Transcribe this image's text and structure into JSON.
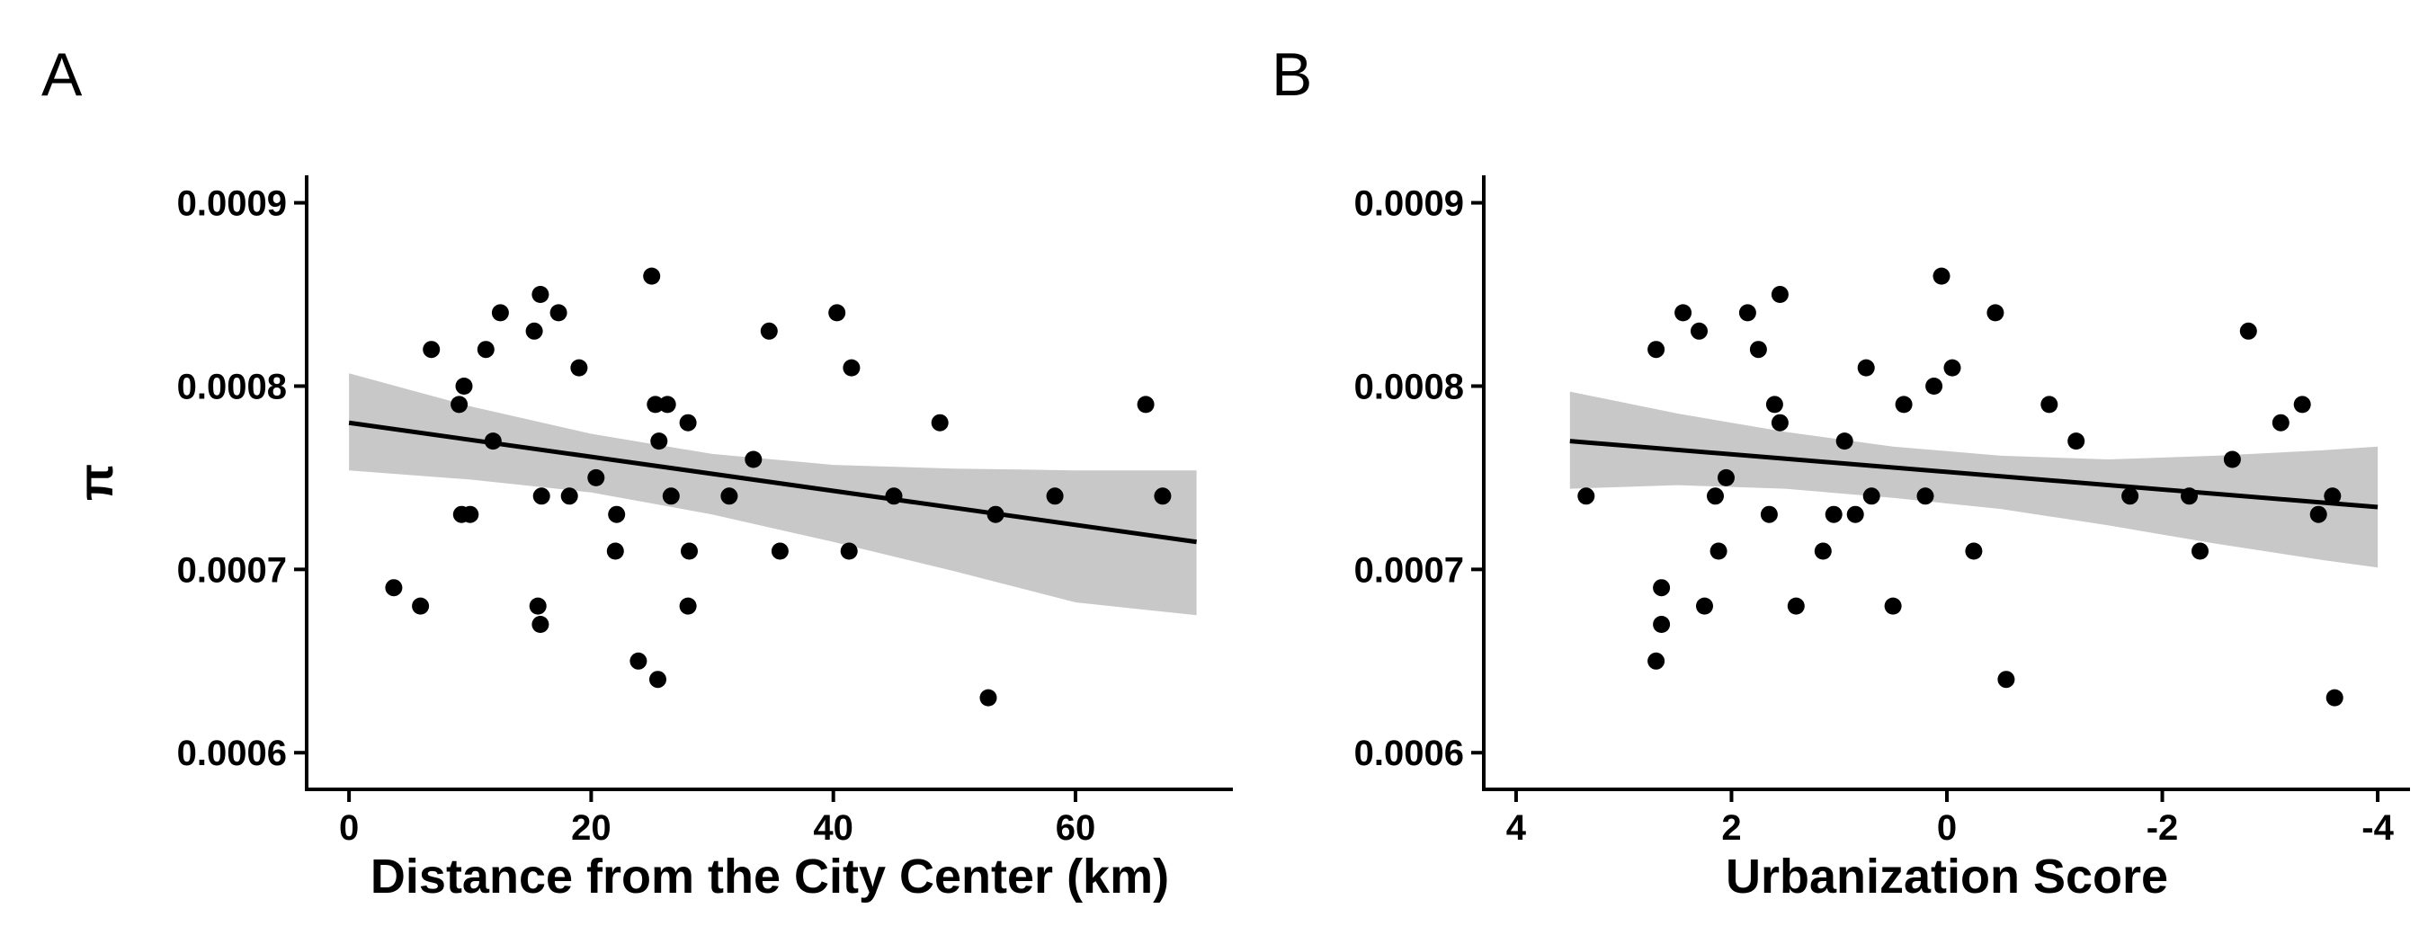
{
  "panels": [
    {
      "letter": "A"
    },
    {
      "letter": "B"
    }
  ],
  "chart_data": [
    {
      "type": "scatter",
      "panel": "A",
      "xlabel": "Distance from the City Center (km)",
      "ylabel": "π",
      "xlim": [
        -3.5,
        73
      ],
      "ylim": [
        0.00058,
        0.000915
      ],
      "xticks": [
        0,
        20,
        40,
        60
      ],
      "xtick_labels": [
        "0",
        "20",
        "40",
        "60"
      ],
      "yticks": [
        0.0006,
        0.0007,
        0.0008,
        0.0009
      ],
      "ytick_labels": [
        "0.0006",
        "0.0007",
        "0.0008",
        "0.0009"
      ],
      "x_reversed": false,
      "grid": false,
      "points": [
        [
          3.7,
          0.00069
        ],
        [
          5.9,
          0.00068
        ],
        [
          6.8,
          0.00082
        ],
        [
          9.1,
          0.00079
        ],
        [
          9.5,
          0.0008
        ],
        [
          9.3,
          0.00073
        ],
        [
          10.0,
          0.00073
        ],
        [
          11.3,
          0.00082
        ],
        [
          11.9,
          0.00077
        ],
        [
          12.5,
          0.00084
        ],
        [
          15.3,
          0.00083
        ],
        [
          15.8,
          0.00085
        ],
        [
          15.9,
          0.00074
        ],
        [
          15.6,
          0.00068
        ],
        [
          15.8,
          0.00067
        ],
        [
          17.3,
          0.00084
        ],
        [
          18.2,
          0.00074
        ],
        [
          19.0,
          0.00081
        ],
        [
          20.4,
          0.00075
        ],
        [
          22.1,
          0.00073
        ],
        [
          22.0,
          0.00071
        ],
        [
          23.9,
          0.00065
        ],
        [
          25.0,
          0.00086
        ],
        [
          25.3,
          0.00079
        ],
        [
          25.6,
          0.00077
        ],
        [
          25.5,
          0.00064
        ],
        [
          26.3,
          0.00079
        ],
        [
          26.6,
          0.00074
        ],
        [
          28.0,
          0.00078
        ],
        [
          28.1,
          0.00071
        ],
        [
          28.0,
          0.00068
        ],
        [
          31.4,
          0.00074
        ],
        [
          33.4,
          0.00076
        ],
        [
          34.7,
          0.00083
        ],
        [
          35.6,
          0.00071
        ],
        [
          40.3,
          0.00084
        ],
        [
          41.3,
          0.00071
        ],
        [
          41.5,
          0.00081
        ],
        [
          45.0,
          0.00074
        ],
        [
          48.8,
          0.00078
        ],
        [
          52.8,
          0.00063
        ],
        [
          53.4,
          0.00073
        ],
        [
          58.3,
          0.00074
        ],
        [
          65.8,
          0.00079
        ],
        [
          67.2,
          0.00074
        ]
      ],
      "fit": {
        "x": [
          0,
          70
        ],
        "y": [
          0.00078,
          0.000715
        ]
      },
      "confidence_band": {
        "x": [
          0,
          10,
          20,
          30,
          40,
          50,
          60,
          70
        ],
        "lower": [
          0.000754,
          0.000749,
          0.000742,
          0.00073,
          0.000715,
          0.000699,
          0.000682,
          0.000675
        ],
        "upper": [
          0.000807,
          0.000789,
          0.000774,
          0.000763,
          0.000757,
          0.000755,
          0.000754,
          0.000754
        ]
      }
    },
    {
      "type": "scatter",
      "panel": "B",
      "xlabel": "Urbanization Score",
      "ylabel": "",
      "xlim": [
        4.3,
        -4.3
      ],
      "ylim": [
        0.00058,
        0.000915
      ],
      "xticks": [
        4,
        2,
        0,
        -2,
        -4
      ],
      "xtick_labels": [
        "4",
        "2",
        "0",
        "-2",
        "-4"
      ],
      "yticks": [
        0.0006,
        0.0007,
        0.0008,
        0.0009
      ],
      "ytick_labels": [
        "0.0006",
        "0.0007",
        "0.0008",
        "0.0009"
      ],
      "x_reversed": true,
      "grid": false,
      "points": [
        [
          3.35,
          0.00074
        ],
        [
          2.7,
          0.00082
        ],
        [
          2.65,
          0.00069
        ],
        [
          2.65,
          0.00067
        ],
        [
          2.7,
          0.00065
        ],
        [
          2.45,
          0.00084
        ],
        [
          2.3,
          0.00083
        ],
        [
          2.25,
          0.00068
        ],
        [
          2.15,
          0.00074
        ],
        [
          2.12,
          0.00071
        ],
        [
          2.05,
          0.00075
        ],
        [
          1.85,
          0.00084
        ],
        [
          1.75,
          0.00082
        ],
        [
          1.65,
          0.00073
        ],
        [
          1.6,
          0.00079
        ],
        [
          1.55,
          0.00078
        ],
        [
          1.55,
          0.00085
        ],
        [
          1.4,
          0.00068
        ],
        [
          1.15,
          0.00071
        ],
        [
          1.05,
          0.00073
        ],
        [
          0.95,
          0.00077
        ],
        [
          0.85,
          0.00073
        ],
        [
          0.75,
          0.00081
        ],
        [
          0.7,
          0.00074
        ],
        [
          0.5,
          0.00068
        ],
        [
          0.4,
          0.00079
        ],
        [
          0.2,
          0.00074
        ],
        [
          0.12,
          0.0008
        ],
        [
          0.05,
          0.00086
        ],
        [
          -0.05,
          0.00081
        ],
        [
          -0.25,
          0.00071
        ],
        [
          -0.45,
          0.00084
        ],
        [
          -0.55,
          0.00064
        ],
        [
          -0.95,
          0.00079
        ],
        [
          -1.2,
          0.00077
        ],
        [
          -1.7,
          0.00074
        ],
        [
          -2.25,
          0.00074
        ],
        [
          -2.35,
          0.00071
        ],
        [
          -2.65,
          0.00076
        ],
        [
          -2.8,
          0.00083
        ],
        [
          -3.1,
          0.00078
        ],
        [
          -3.3,
          0.00079
        ],
        [
          -3.45,
          0.00073
        ],
        [
          -3.58,
          0.00074
        ],
        [
          -3.6,
          0.00063
        ]
      ],
      "fit": {
        "x": [
          3.5,
          -4
        ],
        "y": [
          0.00077,
          0.000734
        ]
      },
      "confidence_band": {
        "x": [
          3.5,
          2.5,
          1.5,
          0.5,
          -0.5,
          -1.5,
          -2.5,
          -3.5,
          -4
        ],
        "lower": [
          0.000744,
          0.000746,
          0.000744,
          0.000739,
          0.000733,
          0.000724,
          0.000714,
          0.000705,
          0.000701
        ],
        "upper": [
          0.000797,
          0.000785,
          0.000775,
          0.000767,
          0.000762,
          0.00076,
          0.000762,
          0.000765,
          0.000767
        ]
      }
    }
  ]
}
